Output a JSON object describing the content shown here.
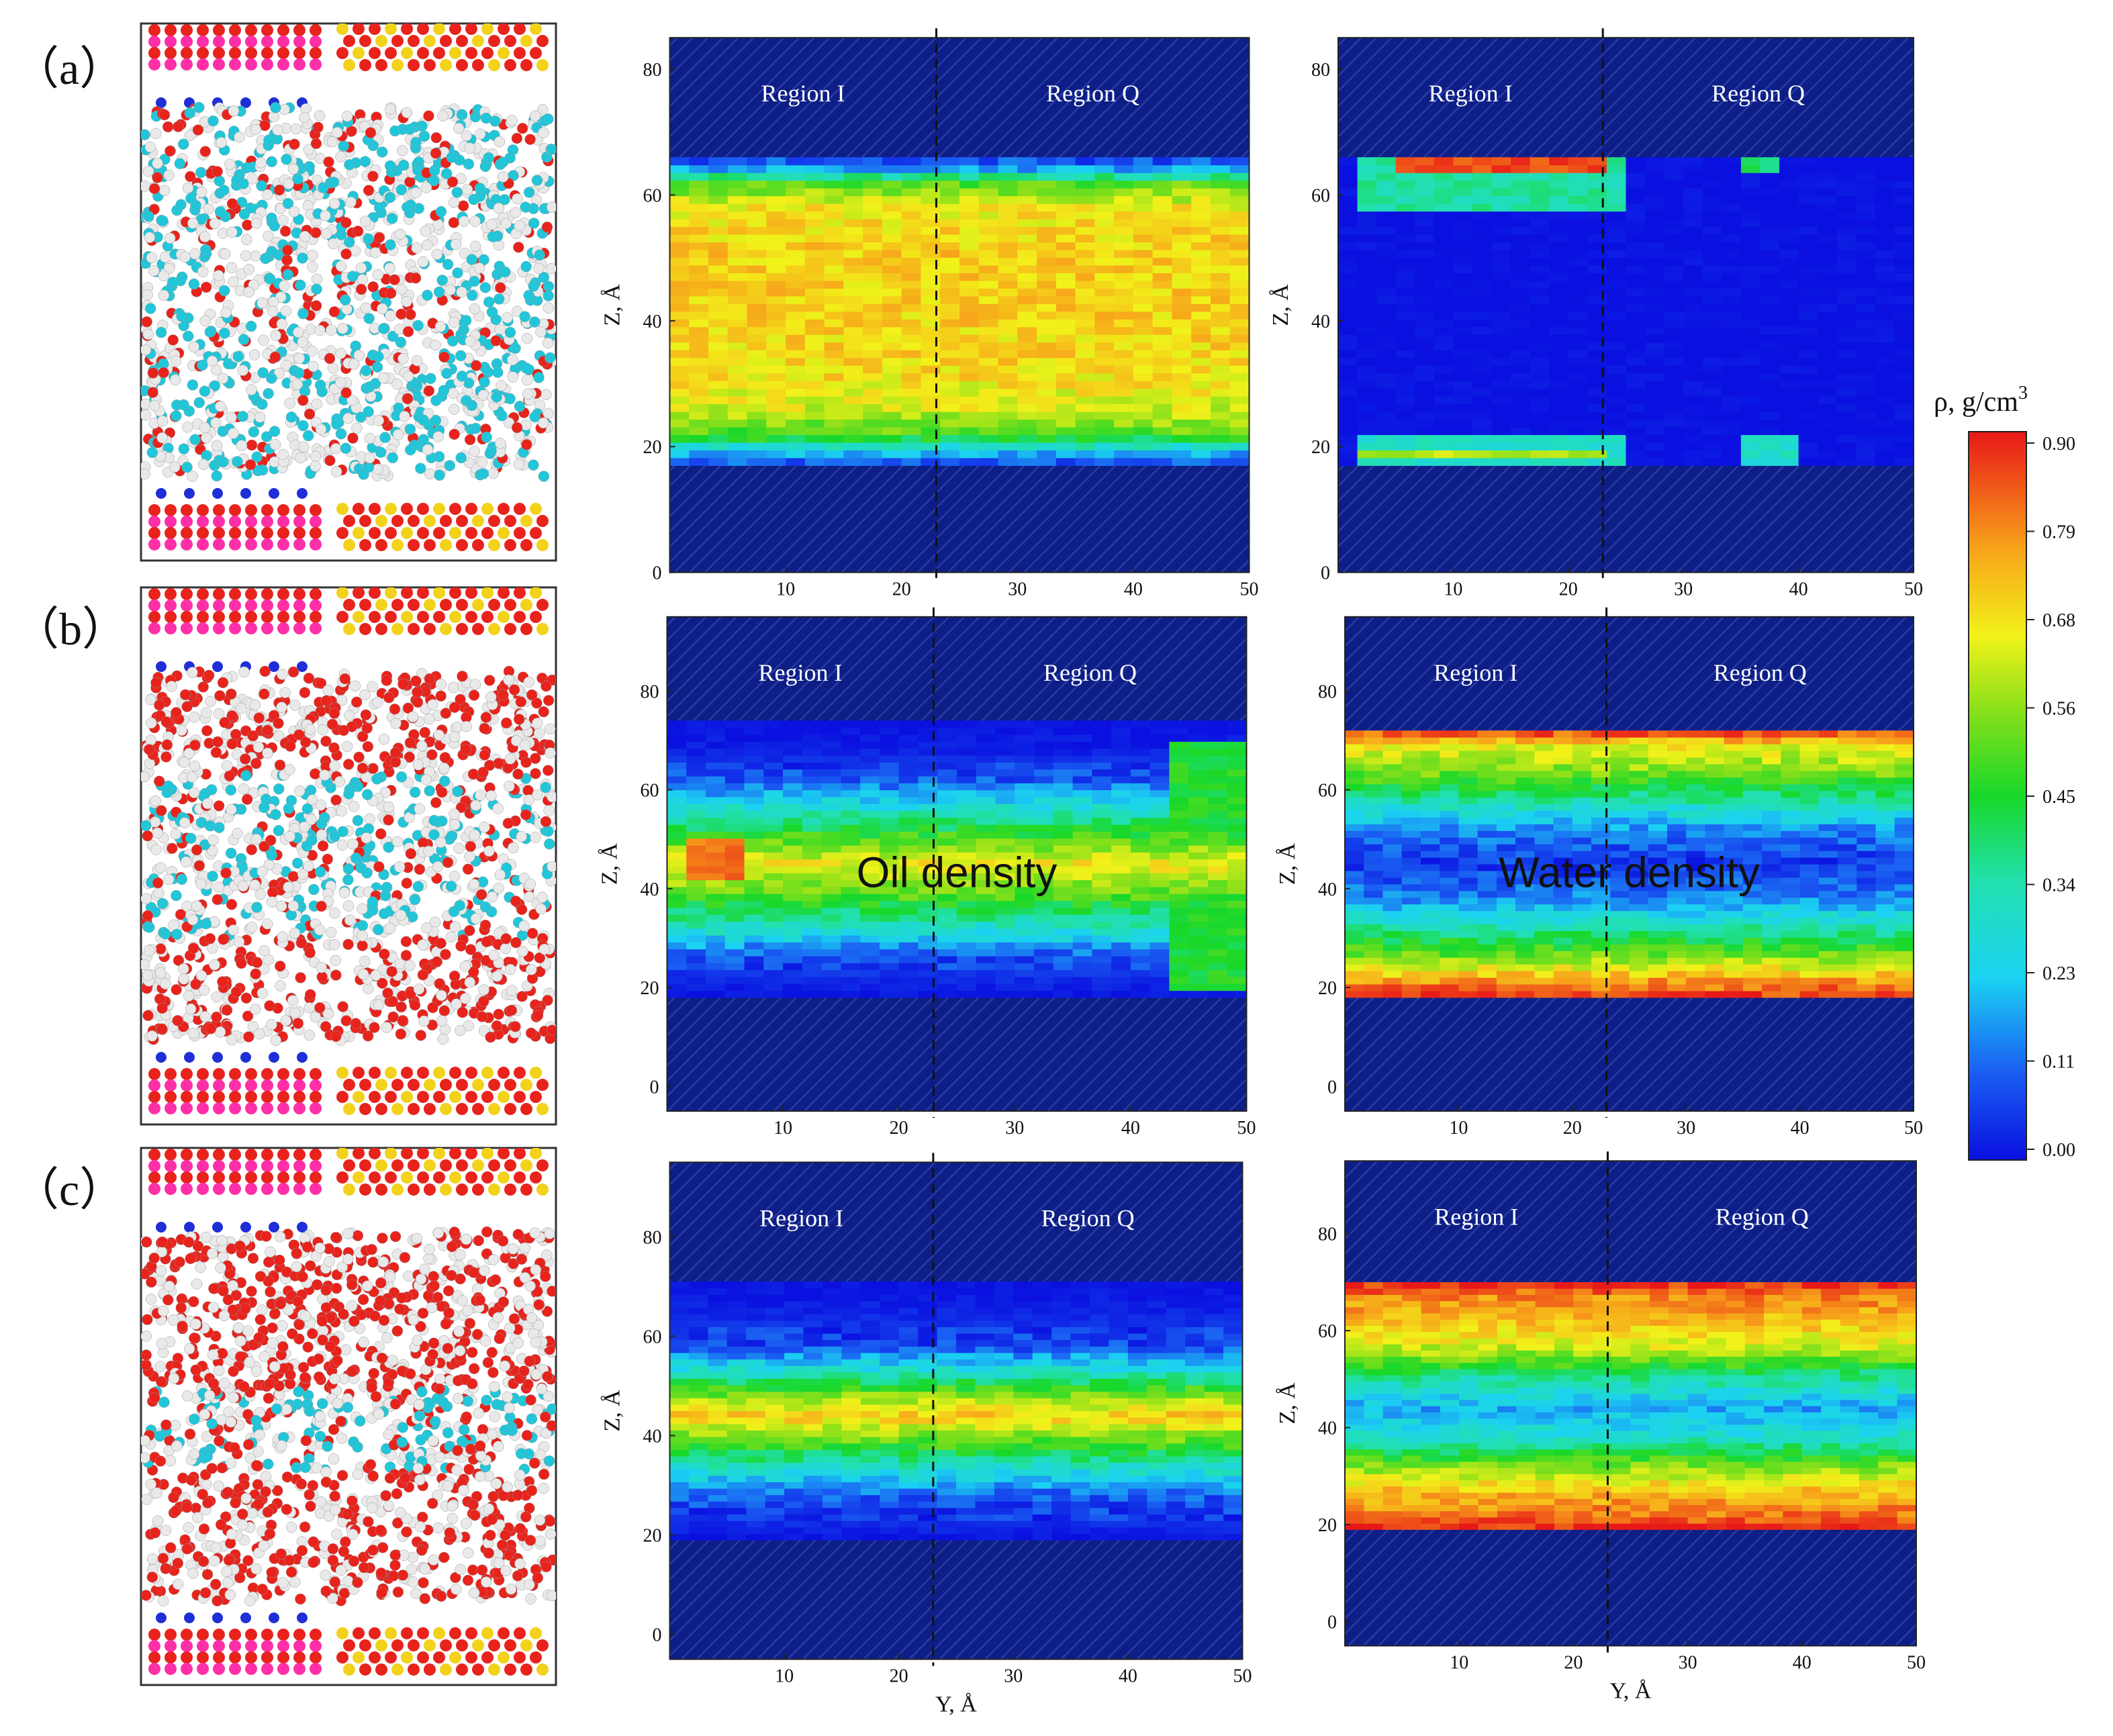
{
  "chart_data": [
    {
      "type": "heatmap",
      "row": "a",
      "panel": "oil",
      "xlabel": "",
      "ylabel": "Z, Å",
      "xlim": [
        0,
        50
      ],
      "ylim": [
        0,
        85
      ],
      "xticks": [
        10,
        20,
        30,
        40,
        50
      ],
      "yticks": [
        0,
        20,
        40,
        60,
        80
      ],
      "divider_y": 23,
      "regions": [
        "Region I",
        "Region Q"
      ],
      "fluid_band": [
        17,
        66
      ],
      "annotation": "",
      "profile": [
        [
          17,
          0.05
        ],
        [
          19,
          0.2
        ],
        [
          22,
          0.5
        ],
        [
          26,
          0.62
        ],
        [
          32,
          0.68
        ],
        [
          50,
          0.7
        ],
        [
          58,
          0.66
        ],
        [
          62,
          0.5
        ],
        [
          64,
          0.2
        ],
        [
          66,
          0.05
        ]
      ],
      "hotspots": []
    },
    {
      "type": "heatmap",
      "row": "a",
      "panel": "water",
      "xlabel": "",
      "ylabel": "Z, Å",
      "xlim": [
        0,
        50
      ],
      "ylim": [
        0,
        85
      ],
      "xticks": [
        10,
        20,
        30,
        40,
        50
      ],
      "yticks": [
        0,
        20,
        40,
        60,
        80
      ],
      "divider_y": 23,
      "regions": [
        "Region I",
        "Region Q"
      ],
      "fluid_band": [
        17,
        66
      ],
      "annotation": "",
      "profile": [
        [
          17,
          0.0
        ],
        [
          50,
          0.0
        ]
      ],
      "hotspots": [
        {
          "y0": 1,
          "y1": 25,
          "z0": 58,
          "z1": 66,
          "v": 0.35
        },
        {
          "y0": 5,
          "y1": 23,
          "z0": 63.5,
          "z1": 65.5,
          "v": 0.85
        },
        {
          "y0": 1,
          "y1": 25,
          "z0": 17,
          "z1": 22,
          "v": 0.3
        },
        {
          "y0": 2,
          "y1": 23,
          "z0": 18.5,
          "z1": 19.5,
          "v": 0.6
        },
        {
          "y0": 35,
          "y1": 39,
          "z0": 63,
          "z1": 66,
          "v": 0.4
        },
        {
          "y0": 35,
          "y1": 40,
          "z0": 17,
          "z1": 22,
          "v": 0.3
        }
      ]
    },
    {
      "type": "heatmap",
      "row": "b",
      "panel": "oil",
      "xlabel": "",
      "ylabel": "Z, Å",
      "xlim": [
        0,
        50
      ],
      "ylim": [
        -5,
        95
      ],
      "xticks": [
        10,
        20,
        30,
        40,
        50
      ],
      "yticks": [
        0,
        20,
        40,
        60,
        80
      ],
      "divider_y": 23,
      "regions": [
        "Region I",
        "Region Q"
      ],
      "fluid_band": [
        18,
        74
      ],
      "annotation": "Oil density",
      "profile": [
        [
          18,
          0.0
        ],
        [
          26,
          0.08
        ],
        [
          32,
          0.3
        ],
        [
          38,
          0.48
        ],
        [
          45,
          0.66
        ],
        [
          50,
          0.5
        ],
        [
          56,
          0.3
        ],
        [
          62,
          0.1
        ],
        [
          68,
          0.02
        ],
        [
          74,
          0.0
        ]
      ],
      "hotspots": [
        {
          "y0": 44,
          "y1": 50,
          "z0": 20,
          "z1": 70,
          "v": 0.45
        },
        {
          "y0": 1,
          "y1": 6,
          "z0": 42,
          "z1": 50,
          "v": 0.8
        }
      ]
    },
    {
      "type": "heatmap",
      "row": "b",
      "panel": "water",
      "xlabel": "",
      "ylabel": "Z, Å",
      "xlim": [
        0,
        50
      ],
      "ylim": [
        -5,
        95
      ],
      "xticks": [
        10,
        20,
        30,
        40,
        50
      ],
      "yticks": [
        0,
        20,
        40,
        60,
        80
      ],
      "divider_y": 23,
      "regions": [
        "Region I",
        "Region Q"
      ],
      "fluid_band": [
        18,
        72
      ],
      "annotation": "Water density",
      "profile": [
        [
          18,
          0.88
        ],
        [
          21,
          0.78
        ],
        [
          26,
          0.55
        ],
        [
          32,
          0.35
        ],
        [
          38,
          0.15
        ],
        [
          45,
          0.05
        ],
        [
          52,
          0.15
        ],
        [
          58,
          0.35
        ],
        [
          64,
          0.55
        ],
        [
          69,
          0.65
        ],
        [
          72,
          0.88
        ]
      ],
      "hotspots": []
    },
    {
      "type": "heatmap",
      "row": "c",
      "panel": "oil",
      "xlabel": "Y, Å",
      "ylabel": "Z, Å",
      "xlim": [
        0,
        50
      ],
      "ylim": [
        -5,
        95
      ],
      "xticks": [
        10,
        20,
        30,
        40,
        50
      ],
      "yticks": [
        0,
        20,
        40,
        60,
        80
      ],
      "divider_y": 23,
      "regions": [
        "Region I",
        "Region Q"
      ],
      "fluid_band": [
        19,
        71
      ],
      "annotation": "",
      "profile": [
        [
          19,
          0.0
        ],
        [
          28,
          0.1
        ],
        [
          34,
          0.32
        ],
        [
          40,
          0.55
        ],
        [
          44,
          0.7
        ],
        [
          48,
          0.55
        ],
        [
          53,
          0.3
        ],
        [
          58,
          0.08
        ],
        [
          64,
          0.03
        ],
        [
          71,
          0.0
        ]
      ],
      "hotspots": []
    },
    {
      "type": "heatmap",
      "row": "c",
      "panel": "water",
      "xlabel": "Y, Å",
      "ylabel": "Z, Å",
      "xlim": [
        0,
        50
      ],
      "ylim": [
        -5,
        95
      ],
      "xticks": [
        10,
        20,
        30,
        40,
        50
      ],
      "yticks": [
        0,
        20,
        40,
        60,
        80
      ],
      "divider_y": 23,
      "regions": [
        "Region I",
        "Region Q"
      ],
      "fluid_band": [
        19,
        70
      ],
      "annotation": "",
      "profile": [
        [
          19,
          0.9
        ],
        [
          22,
          0.8
        ],
        [
          27,
          0.72
        ],
        [
          32,
          0.55
        ],
        [
          38,
          0.3
        ],
        [
          44,
          0.18
        ],
        [
          50,
          0.35
        ],
        [
          56,
          0.6
        ],
        [
          62,
          0.72
        ],
        [
          67,
          0.78
        ],
        [
          70,
          0.9
        ]
      ],
      "hotspots": []
    }
  ],
  "row_labels": [
    "（a）",
    "（b）",
    "（c）"
  ],
  "colorbar": {
    "title_main": "ρ,  g/cm",
    "title_sup": "3",
    "ticks": [
      "0.90",
      "0.79",
      "0.68",
      "0.56",
      "0.45",
      "0.34",
      "0.23",
      "0.11",
      "0.00"
    ],
    "min": 0,
    "max": 0.9
  },
  "colors": {
    "wall": "#0d1f86",
    "atom_silica_o": "#e8231c",
    "atom_silica_si": "#f2d21a",
    "atom_kaolinite": "#ff2fa8",
    "atom_oil_h": "#e9e9e9",
    "atom_oil_c": "#21c6d9",
    "atom_water_o": "#e8231c",
    "atom_cation": "#1f2fd8"
  }
}
